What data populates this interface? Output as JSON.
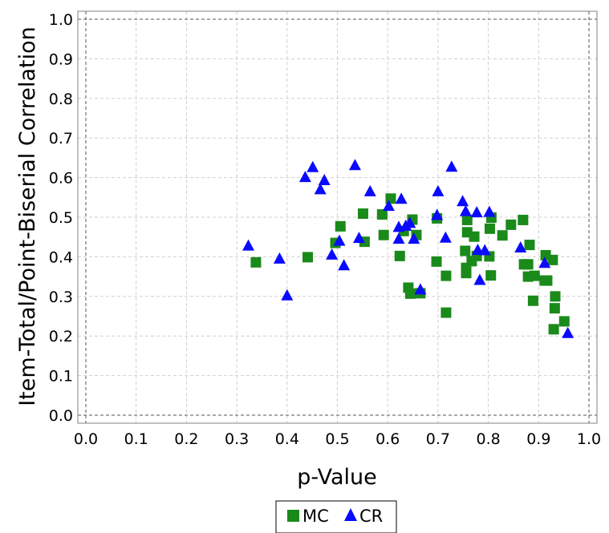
{
  "chart_data": {
    "type": "scatter",
    "title": "",
    "xlabel": "p-Value",
    "ylabel": "Item-Total/Point-Biserial Correlation",
    "xlim": [
      0.0,
      1.0
    ],
    "ylim": [
      0.0,
      1.0
    ],
    "x_ticks": [
      "0.0",
      "0.1",
      "0.2",
      "0.3",
      "0.4",
      "0.5",
      "0.6",
      "0.7",
      "0.8",
      "0.9",
      "1.0"
    ],
    "y_ticks": [
      "0.0",
      "0.1",
      "0.2",
      "0.3",
      "0.4",
      "0.5",
      "0.6",
      "0.7",
      "0.8",
      "0.9",
      "1.0"
    ],
    "grid": true,
    "legend_position": "bottom",
    "series": [
      {
        "name": "MC",
        "marker": "square",
        "color": "#1a8a1a",
        "points": [
          [
            0.338,
            0.386
          ],
          [
            0.441,
            0.399
          ],
          [
            0.496,
            0.435
          ],
          [
            0.506,
            0.477
          ],
          [
            0.551,
            0.509
          ],
          [
            0.554,
            0.438
          ],
          [
            0.589,
            0.507
          ],
          [
            0.592,
            0.455
          ],
          [
            0.606,
            0.547
          ],
          [
            0.624,
            0.402
          ],
          [
            0.632,
            0.465
          ],
          [
            0.641,
            0.322
          ],
          [
            0.645,
            0.307
          ],
          [
            0.649,
            0.494
          ],
          [
            0.657,
            0.455
          ],
          [
            0.665,
            0.308
          ],
          [
            0.697,
            0.388
          ],
          [
            0.698,
            0.497
          ],
          [
            0.716,
            0.352
          ],
          [
            0.716,
            0.259
          ],
          [
            0.754,
            0.415
          ],
          [
            0.756,
            0.372
          ],
          [
            0.756,
            0.359
          ],
          [
            0.758,
            0.493
          ],
          [
            0.758,
            0.462
          ],
          [
            0.767,
            0.389
          ],
          [
            0.772,
            0.451
          ],
          [
            0.777,
            0.402
          ],
          [
            0.802,
            0.401
          ],
          [
            0.803,
            0.471
          ],
          [
            0.805,
            0.353
          ],
          [
            0.806,
            0.499
          ],
          [
            0.828,
            0.454
          ],
          [
            0.845,
            0.481
          ],
          [
            0.869,
            0.493
          ],
          [
            0.871,
            0.381
          ],
          [
            0.879,
            0.381
          ],
          [
            0.879,
            0.35
          ],
          [
            0.882,
            0.43
          ],
          [
            0.889,
            0.289
          ],
          [
            0.892,
            0.352
          ],
          [
            0.912,
            0.34
          ],
          [
            0.914,
            0.404
          ],
          [
            0.917,
            0.34
          ],
          [
            0.928,
            0.392
          ],
          [
            0.93,
            0.217
          ],
          [
            0.932,
            0.27
          ],
          [
            0.933,
            0.3
          ],
          [
            0.951,
            0.237
          ]
        ]
      },
      {
        "name": "CR",
        "marker": "triangle",
        "color": "#0a0aff",
        "points": [
          [
            0.323,
            0.428
          ],
          [
            0.385,
            0.395
          ],
          [
            0.4,
            0.302
          ],
          [
            0.436,
            0.601
          ],
          [
            0.451,
            0.626
          ],
          [
            0.466,
            0.57
          ],
          [
            0.474,
            0.593
          ],
          [
            0.489,
            0.405
          ],
          [
            0.504,
            0.44
          ],
          [
            0.513,
            0.378
          ],
          [
            0.535,
            0.631
          ],
          [
            0.543,
            0.447
          ],
          [
            0.565,
            0.565
          ],
          [
            0.602,
            0.528
          ],
          [
            0.622,
            0.445
          ],
          [
            0.622,
            0.475
          ],
          [
            0.627,
            0.546
          ],
          [
            0.636,
            0.478
          ],
          [
            0.644,
            0.485
          ],
          [
            0.652,
            0.445
          ],
          [
            0.665,
            0.317
          ],
          [
            0.698,
            0.505
          ],
          [
            0.7,
            0.565
          ],
          [
            0.715,
            0.448
          ],
          [
            0.727,
            0.627
          ],
          [
            0.749,
            0.54
          ],
          [
            0.755,
            0.515
          ],
          [
            0.777,
            0.512
          ],
          [
            0.779,
            0.417
          ],
          [
            0.783,
            0.341
          ],
          [
            0.793,
            0.416
          ],
          [
            0.802,
            0.513
          ],
          [
            0.864,
            0.423
          ],
          [
            0.912,
            0.384
          ],
          [
            0.958,
            0.207
          ]
        ]
      }
    ]
  }
}
